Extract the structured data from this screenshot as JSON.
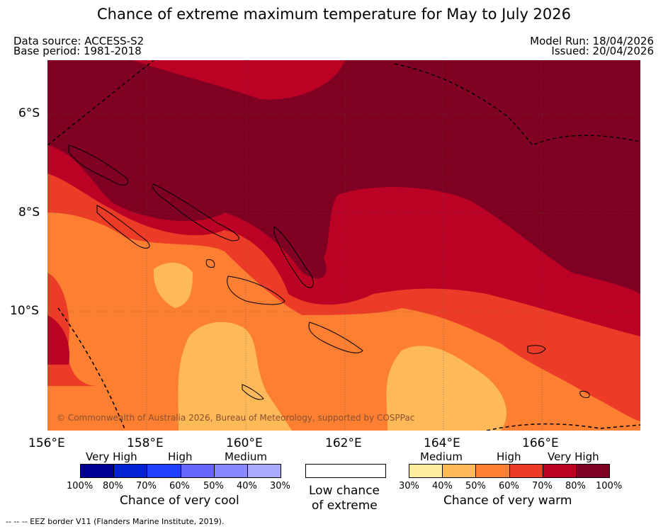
{
  "title": "Chance of extreme maximum temperature for May to July 2026",
  "header": {
    "data_source": "Data source: ACCESS-S2",
    "base_period": "Base period: 1981-2018",
    "model_run": "Model Run: 18/04/2026",
    "issued": "Issued: 20/04/2026"
  },
  "axes": {
    "lat_labels": [
      "6°S",
      "8°S",
      "10°S"
    ],
    "lon_labels": [
      "156°E",
      "158°E",
      "160°E",
      "162°E",
      "164°E",
      "166°E"
    ]
  },
  "map": {
    "copyright": "© Commonwealth of Australia 2026, Bureau of Meteorology, supported by COSPPac"
  },
  "legend": {
    "cool": {
      "categories": [
        "Very High",
        "High",
        "Medium"
      ],
      "percentages": [
        "100%",
        "80%",
        "70%",
        "60%",
        "50%",
        "40%",
        "30%"
      ],
      "colors": [
        "#000099",
        "#0022d2",
        "#2040ff",
        "#6666ff",
        "#8888ff",
        "#aaaaff"
      ],
      "caption": "Chance of very cool"
    },
    "neutral": {
      "caption_line1": "Low chance",
      "caption_line2": "of extreme",
      "color": "#ffffff"
    },
    "warm": {
      "categories": [
        "Medium",
        "High",
        "Very High"
      ],
      "percentages": [
        "30%",
        "40%",
        "50%",
        "60%",
        "70%",
        "80%",
        "100%"
      ],
      "colors": [
        "#ffec9f",
        "#feb959",
        "#fd7f32",
        "#ec3c27",
        "#bb0124",
        "#7f0022"
      ],
      "caption": "Chance of very warm"
    }
  },
  "footer": {
    "eez_note": "--  --  -- EEZ border V11 (Flanders Marine Institute, 2019)."
  }
}
